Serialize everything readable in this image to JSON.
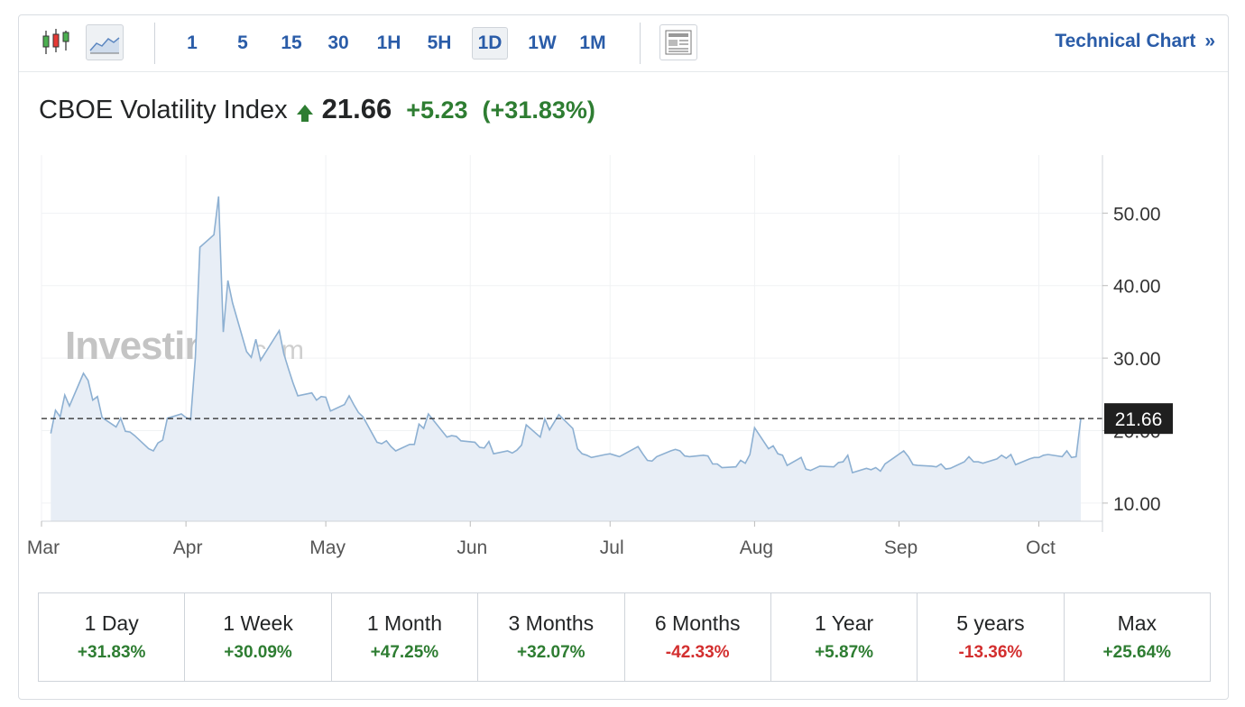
{
  "toolbar": {
    "timeframes": [
      "1",
      "5",
      "15",
      "30",
      "1H",
      "5H",
      "1D",
      "1W",
      "1M"
    ],
    "active_timeframe": "1D",
    "technical_label": "Technical Chart",
    "technical_chevron": "»"
  },
  "quote": {
    "name": "CBOE Volatility Index",
    "last": "21.66",
    "change": "+5.23",
    "change_pct": "(+31.83%)",
    "direction_icon": "up-arrow-icon",
    "up_color": "#2e7d32"
  },
  "watermark": {
    "brand": "Investing",
    "suffix": ".com"
  },
  "chart_data": {
    "type": "area",
    "x_start": "2025-03-01",
    "x_end": "2025-10-10",
    "x_tick_labels": [
      "Mar",
      "Apr",
      "May",
      "Jun",
      "Jul",
      "Aug",
      "Sep",
      "Oct"
    ],
    "x_tick_dates": [
      "2025-03-01",
      "2025-04-01",
      "2025-05-01",
      "2025-06-01",
      "2025-07-01",
      "2025-08-01",
      "2025-09-01",
      "2025-10-01"
    ],
    "y_ticks": [
      10,
      20,
      30,
      40,
      50
    ],
    "y_tick_labels": [
      "10.00",
      "20.00",
      "30.00",
      "40.00",
      "50.00"
    ],
    "ylim": [
      7.5,
      58
    ],
    "current_value": 21.66,
    "current_label": "21.66",
    "line_color": "#8db0d2",
    "fill_color": "#e8eef6",
    "series": [
      {
        "points": [
          [
            "2025-03-03",
            19.6
          ],
          [
            "2025-03-04",
            22.8
          ],
          [
            "2025-03-05",
            21.9
          ],
          [
            "2025-03-06",
            24.9
          ],
          [
            "2025-03-07",
            23.4
          ],
          [
            "2025-03-10",
            27.9
          ],
          [
            "2025-03-11",
            26.9
          ],
          [
            "2025-03-12",
            24.2
          ],
          [
            "2025-03-13",
            24.7
          ],
          [
            "2025-03-14",
            21.8
          ],
          [
            "2025-03-17",
            20.5
          ],
          [
            "2025-03-18",
            21.7
          ],
          [
            "2025-03-19",
            19.9
          ],
          [
            "2025-03-20",
            19.8
          ],
          [
            "2025-03-21",
            19.3
          ],
          [
            "2025-03-24",
            17.5
          ],
          [
            "2025-03-25",
            17.2
          ],
          [
            "2025-03-26",
            18.3
          ],
          [
            "2025-03-27",
            18.7
          ],
          [
            "2025-03-28",
            21.7
          ],
          [
            "2025-03-31",
            22.3
          ],
          [
            "2025-04-01",
            21.8
          ],
          [
            "2025-04-02",
            21.5
          ],
          [
            "2025-04-03",
            30.0
          ],
          [
            "2025-04-04",
            45.3
          ],
          [
            "2025-04-07",
            47.0
          ],
          [
            "2025-04-08",
            52.3
          ],
          [
            "2025-04-09",
            33.6
          ],
          [
            "2025-04-10",
            40.7
          ],
          [
            "2025-04-11",
            37.6
          ],
          [
            "2025-04-14",
            30.9
          ],
          [
            "2025-04-15",
            30.1
          ],
          [
            "2025-04-16",
            32.6
          ],
          [
            "2025-04-17",
            29.7
          ],
          [
            "2025-04-21",
            33.8
          ],
          [
            "2025-04-22",
            30.6
          ],
          [
            "2025-04-23",
            28.5
          ],
          [
            "2025-04-24",
            26.5
          ],
          [
            "2025-04-25",
            24.8
          ],
          [
            "2025-04-28",
            25.2
          ],
          [
            "2025-04-29",
            24.2
          ],
          [
            "2025-04-30",
            24.7
          ],
          [
            "2025-05-01",
            24.6
          ],
          [
            "2025-05-02",
            22.7
          ],
          [
            "2025-05-05",
            23.6
          ],
          [
            "2025-05-06",
            24.8
          ],
          [
            "2025-05-07",
            23.6
          ],
          [
            "2025-05-08",
            22.5
          ],
          [
            "2025-05-09",
            21.9
          ],
          [
            "2025-05-12",
            18.4
          ],
          [
            "2025-05-13",
            18.2
          ],
          [
            "2025-05-14",
            18.6
          ],
          [
            "2025-05-15",
            17.8
          ],
          [
            "2025-05-16",
            17.2
          ],
          [
            "2025-05-19",
            18.1
          ],
          [
            "2025-05-20",
            18.1
          ],
          [
            "2025-05-21",
            20.9
          ],
          [
            "2025-05-22",
            20.3
          ],
          [
            "2025-05-23",
            22.3
          ],
          [
            "2025-05-27",
            19.1
          ],
          [
            "2025-05-28",
            19.3
          ],
          [
            "2025-05-29",
            19.2
          ],
          [
            "2025-05-30",
            18.6
          ],
          [
            "2025-06-02",
            18.4
          ],
          [
            "2025-06-03",
            17.7
          ],
          [
            "2025-06-04",
            17.6
          ],
          [
            "2025-06-05",
            18.5
          ],
          [
            "2025-06-06",
            16.8
          ],
          [
            "2025-06-09",
            17.2
          ],
          [
            "2025-06-10",
            16.9
          ],
          [
            "2025-06-11",
            17.3
          ],
          [
            "2025-06-12",
            18.0
          ],
          [
            "2025-06-13",
            20.8
          ],
          [
            "2025-06-16",
            19.1
          ],
          [
            "2025-06-17",
            21.6
          ],
          [
            "2025-06-18",
            20.1
          ],
          [
            "2025-06-20",
            22.2
          ],
          [
            "2025-06-23",
            20.3
          ],
          [
            "2025-06-24",
            17.5
          ],
          [
            "2025-06-25",
            16.8
          ],
          [
            "2025-06-26",
            16.6
          ],
          [
            "2025-06-27",
            16.3
          ],
          [
            "2025-06-30",
            16.7
          ],
          [
            "2025-07-01",
            16.8
          ],
          [
            "2025-07-02",
            16.6
          ],
          [
            "2025-07-03",
            16.4
          ],
          [
            "2025-07-07",
            17.8
          ],
          [
            "2025-07-08",
            16.8
          ],
          [
            "2025-07-09",
            15.9
          ],
          [
            "2025-07-10",
            15.8
          ],
          [
            "2025-07-11",
            16.4
          ],
          [
            "2025-07-14",
            17.2
          ],
          [
            "2025-07-15",
            17.4
          ],
          [
            "2025-07-16",
            17.2
          ],
          [
            "2025-07-17",
            16.5
          ],
          [
            "2025-07-18",
            16.4
          ],
          [
            "2025-07-21",
            16.6
          ],
          [
            "2025-07-22",
            16.5
          ],
          [
            "2025-07-23",
            15.4
          ],
          [
            "2025-07-24",
            15.4
          ],
          [
            "2025-07-25",
            14.9
          ],
          [
            "2025-07-28",
            15.0
          ],
          [
            "2025-07-29",
            15.9
          ],
          [
            "2025-07-30",
            15.5
          ],
          [
            "2025-07-31",
            16.7
          ],
          [
            "2025-08-01",
            20.4
          ],
          [
            "2025-08-04",
            17.5
          ],
          [
            "2025-08-05",
            17.9
          ],
          [
            "2025-08-06",
            16.8
          ],
          [
            "2025-08-07",
            16.6
          ],
          [
            "2025-08-08",
            15.2
          ],
          [
            "2025-08-11",
            16.3
          ],
          [
            "2025-08-12",
            14.7
          ],
          [
            "2025-08-13",
            14.5
          ],
          [
            "2025-08-14",
            14.8
          ],
          [
            "2025-08-15",
            15.1
          ],
          [
            "2025-08-18",
            15.0
          ],
          [
            "2025-08-19",
            15.6
          ],
          [
            "2025-08-20",
            15.7
          ],
          [
            "2025-08-21",
            16.6
          ],
          [
            "2025-08-22",
            14.2
          ],
          [
            "2025-08-25",
            14.8
          ],
          [
            "2025-08-26",
            14.6
          ],
          [
            "2025-08-27",
            14.9
          ],
          [
            "2025-08-28",
            14.4
          ],
          [
            "2025-08-29",
            15.4
          ],
          [
            "2025-09-02",
            17.2
          ],
          [
            "2025-09-03",
            16.4
          ],
          [
            "2025-09-04",
            15.3
          ],
          [
            "2025-09-05",
            15.2
          ],
          [
            "2025-09-08",
            15.1
          ],
          [
            "2025-09-09",
            15.0
          ],
          [
            "2025-09-10",
            15.4
          ],
          [
            "2025-09-11",
            14.7
          ],
          [
            "2025-09-12",
            14.8
          ],
          [
            "2025-09-15",
            15.7
          ],
          [
            "2025-09-16",
            16.4
          ],
          [
            "2025-09-17",
            15.7
          ],
          [
            "2025-09-18",
            15.7
          ],
          [
            "2025-09-19",
            15.5
          ],
          [
            "2025-09-22",
            16.1
          ],
          [
            "2025-09-23",
            16.6
          ],
          [
            "2025-09-24",
            16.2
          ],
          [
            "2025-09-25",
            16.7
          ],
          [
            "2025-09-26",
            15.3
          ],
          [
            "2025-09-29",
            16.1
          ],
          [
            "2025-09-30",
            16.3
          ],
          [
            "2025-10-01",
            16.3
          ],
          [
            "2025-10-02",
            16.6
          ],
          [
            "2025-10-03",
            16.7
          ],
          [
            "2025-10-06",
            16.4
          ],
          [
            "2025-10-07",
            17.2
          ],
          [
            "2025-10-08",
            16.3
          ],
          [
            "2025-10-09",
            16.4
          ],
          [
            "2025-10-10",
            21.66
          ]
        ]
      }
    ]
  },
  "performance": [
    {
      "label": "1 Day",
      "value": "+31.83%",
      "dir": "pos"
    },
    {
      "label": "1 Week",
      "value": "+30.09%",
      "dir": "pos"
    },
    {
      "label": "1 Month",
      "value": "+47.25%",
      "dir": "pos"
    },
    {
      "label": "3 Months",
      "value": "+32.07%",
      "dir": "pos"
    },
    {
      "label": "6 Months",
      "value": "-42.33%",
      "dir": "neg"
    },
    {
      "label": "1 Year",
      "value": "+5.87%",
      "dir": "pos"
    },
    {
      "label": "5 years",
      "value": "-13.36%",
      "dir": "neg"
    },
    {
      "label": "Max",
      "value": "+25.64%",
      "dir": "pos"
    }
  ]
}
